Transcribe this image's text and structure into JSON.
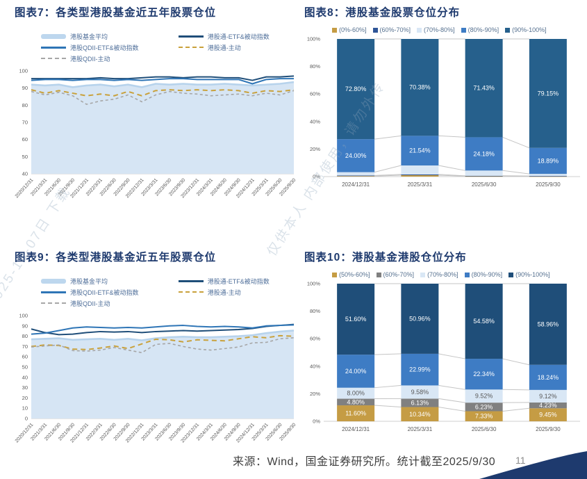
{
  "page": {
    "source_note": "来源：Wind，国金证券研究所。统计截至2025/9/30",
    "page_number": "11",
    "watermark_line1": "2025-10-07日 下载",
    "watermark_line2": "仅供本人 内部使用，请勿外传",
    "accent_navy": "#1E3A6E"
  },
  "chart_data": [
    {
      "id": "fig7",
      "type": "line",
      "title": "图表7：各类型港股基金近五年股票仓位",
      "x": [
        "2020/12/31",
        "2021/3/31",
        "2021/6/30",
        "2021/9/30",
        "2021/12/31",
        "2022/3/31",
        "2022/6/30",
        "2022/9/30",
        "2022/12/31",
        "2023/3/31",
        "2023/6/30",
        "2023/9/30",
        "2023/12/31",
        "2024/3/31",
        "2024/6/30",
        "2024/9/30",
        "2024/12/31",
        "2025/3/31",
        "2025/6/30",
        "2025/9/30"
      ],
      "ylim": [
        40,
        100
      ],
      "yticks": [
        40,
        50,
        60,
        70,
        80,
        90,
        100
      ],
      "grid": false,
      "legend_position": "top-two-column",
      "legend": [
        {
          "label": "港股基金平均",
          "swatch": "band",
          "color": "#BDD7EE"
        },
        {
          "label": "港股QDII-ETF&被动指数",
          "swatch": "line",
          "color": "#2E75B6"
        },
        {
          "label": "港股QDII-主动",
          "swatch": "dash",
          "color": "#A6A6A6"
        },
        {
          "label": "港股通-ETF&被动指数",
          "swatch": "line",
          "color": "#1F4E79"
        },
        {
          "label": "港股通-主动",
          "swatch": "dash",
          "color": "#C9A13B"
        }
      ],
      "series": [
        {
          "name": "港股基金平均",
          "kind": "area",
          "color": "#D6E5F4",
          "edge_color": "#B7D3EC",
          "values": [
            92,
            91.5,
            92,
            90.5,
            91.5,
            92,
            91,
            92,
            90.5,
            92.5,
            92,
            92.5,
            92,
            92,
            92.5,
            92,
            91.5,
            92,
            92.5,
            93.5
          ]
        },
        {
          "name": "港股通-ETF&被动指数",
          "kind": "line",
          "style": "solid",
          "color": "#1F4E79",
          "values": [
            95.5,
            95.5,
            95.5,
            95.5,
            95.5,
            96,
            95.5,
            95.5,
            96,
            96.5,
            96.5,
            96,
            96.5,
            96.5,
            96,
            96,
            94.5,
            96.5,
            96.5,
            97
          ]
        },
        {
          "name": "港股QDII-ETF&被动指数",
          "kind": "line",
          "style": "solid",
          "color": "#2E75B6",
          "values": [
            94.5,
            95,
            95,
            94.5,
            95,
            95,
            94.5,
            95,
            94.5,
            95,
            95.5,
            95.5,
            95,
            95,
            95,
            95,
            92.5,
            95,
            95.5,
            95.5
          ]
        },
        {
          "name": "港股通-主动",
          "kind": "line",
          "style": "dashed",
          "color": "#C9A13B",
          "values": [
            89,
            87,
            88.5,
            87,
            85.5,
            86.5,
            85.5,
            88,
            85.5,
            88.5,
            89,
            88.5,
            89,
            88.5,
            89,
            88.5,
            87,
            88.5,
            88,
            89
          ]
        },
        {
          "name": "港股QDII-主动",
          "kind": "line",
          "style": "dashed",
          "color": "#A6A6A6",
          "values": [
            88,
            86,
            87.5,
            85.5,
            80.5,
            82.5,
            83.5,
            86,
            82,
            86,
            88,
            87,
            86.5,
            85.5,
            86,
            86.5,
            85.5,
            87,
            86,
            88.5
          ]
        }
      ]
    },
    {
      "id": "fig8",
      "type": "bar",
      "subtype": "stacked-100",
      "title": "图表8：港股基金股票仓位分布",
      "categories": [
        "2024/12/31",
        "2025/3/31",
        "2025/6/30",
        "2025/9/30"
      ],
      "ylim": [
        0,
        100
      ],
      "yticks": [
        "0%",
        "20%",
        "40%",
        "60%",
        "80%",
        "100%"
      ],
      "grid": false,
      "legend_position": "top",
      "series": [
        {
          "name": "(0%-60%]",
          "color": "#C59C44",
          "label_fill": "#FFFFFF",
          "values": [
            0.4,
            1.0,
            0.3,
            0.2
          ]
        },
        {
          "name": "(60%-70%]",
          "color": "#2F5597",
          "label_fill": "#FFFFFF",
          "values": [
            0.4,
            0.58,
            0.3,
            0.25
          ]
        },
        {
          "name": "(70%-80%]",
          "color": "#D9E7F5",
          "label_fill": "#595959",
          "values": [
            2.4,
            6.5,
            3.79,
            1.51
          ]
        },
        {
          "name": "(80%-90%]",
          "color": "#3E7CC4",
          "label_fill": "#FFFFFF",
          "values": [
            24.0,
            21.54,
            24.18,
            18.89
          ],
          "labels": [
            "24.00%",
            "21.54%",
            "24.18%",
            "18.89%"
          ]
        },
        {
          "name": "(90%-100%]",
          "color": "#26608C",
          "label_fill": "#FFFFFF",
          "values": [
            72.8,
            70.38,
            71.43,
            79.15
          ],
          "labels": [
            "72.80%",
            "70.38%",
            "71.43%",
            "79.15%"
          ]
        }
      ]
    },
    {
      "id": "fig9",
      "type": "line",
      "title": "图表9：各类型港股基金近五年股票仓位",
      "x": [
        "2020/12/31",
        "2021/3/31",
        "2021/6/30",
        "2021/9/30",
        "2021/12/31",
        "2022/3/31",
        "2022/6/30",
        "2022/9/30",
        "2022/12/31",
        "2023/3/31",
        "2023/6/30",
        "2023/9/30",
        "2023/12/31",
        "2024/3/31",
        "2024/6/30",
        "2024/9/30",
        "2024/12/31",
        "2025/3/31",
        "2025/6/30",
        "2025/9/30"
      ],
      "ylim": [
        0,
        100
      ],
      "yticks": [
        0,
        10,
        20,
        30,
        40,
        50,
        60,
        70,
        80,
        90,
        100
      ],
      "grid": false,
      "legend_position": "top-two-column",
      "legend": [
        {
          "label": "港股基金平均",
          "swatch": "band",
          "color": "#BDD7EE"
        },
        {
          "label": "港股QDII-ETF&被动指数",
          "swatch": "line",
          "color": "#2E75B6"
        },
        {
          "label": "港股QDII-主动",
          "swatch": "dash",
          "color": "#A6A6A6"
        },
        {
          "label": "港股通-ETF&被动指数",
          "swatch": "line",
          "color": "#1F4E79"
        },
        {
          "label": "港股通-主动",
          "swatch": "dash",
          "color": "#C9A13B"
        }
      ],
      "series": [
        {
          "name": "港股基金平均",
          "kind": "area",
          "color": "#D6E5F4",
          "edge_color": "#B7D3EC",
          "values": [
            77,
            77.5,
            78,
            76.5,
            77,
            77.5,
            76.5,
            77.5,
            76,
            78,
            79,
            79.5,
            79,
            79,
            79.5,
            80,
            81,
            83,
            84.5,
            85.5
          ]
        },
        {
          "name": "港股通-ETF&被动指数",
          "kind": "line",
          "style": "solid",
          "color": "#1F4E79",
          "values": [
            87,
            83.5,
            81.5,
            82,
            83.5,
            84.5,
            84,
            84.5,
            83.5,
            84.5,
            85,
            85.5,
            85,
            85.5,
            86,
            86.5,
            87.5,
            89.5,
            90.5,
            91.5
          ]
        },
        {
          "name": "港股QDII-ETF&被动指数",
          "kind": "line",
          "style": "solid",
          "color": "#2E75B6",
          "values": [
            82,
            83,
            85.5,
            88,
            89,
            88.5,
            88,
            88.5,
            88,
            89,
            90,
            90.5,
            89.5,
            89,
            89.5,
            89,
            88,
            90,
            90.5,
            91
          ]
        },
        {
          "name": "港股通-主动",
          "kind": "line",
          "style": "dashed",
          "color": "#C9A13B",
          "values": [
            70,
            71.5,
            71,
            67.5,
            67,
            68.5,
            70.5,
            68,
            72.5,
            77,
            76.5,
            74.5,
            76.5,
            76,
            75.5,
            77.5,
            79.5,
            78.5,
            80.5,
            80
          ]
        },
        {
          "name": "港股QDII-主动",
          "kind": "line",
          "style": "dashed",
          "color": "#A6A6A6",
          "values": [
            69.5,
            70.5,
            71.5,
            66,
            65.5,
            66.5,
            69,
            66.5,
            64,
            72,
            73,
            70,
            67.5,
            66.5,
            68,
            69.5,
            73.5,
            74,
            77.5,
            78.5
          ]
        }
      ]
    },
    {
      "id": "fig10",
      "type": "bar",
      "subtype": "stacked-100",
      "title": "图表10：港股基金港股仓位分布",
      "categories": [
        "2024/12/31",
        "2025/3/31",
        "2025/6/30",
        "2025/9/30"
      ],
      "ylim": [
        0,
        100
      ],
      "yticks": [
        "0%",
        "20%",
        "40%",
        "60%",
        "80%",
        "100%"
      ],
      "grid": false,
      "legend_position": "top",
      "series": [
        {
          "name": "(50%-60%]",
          "color": "#C59C44",
          "label_fill": "#FFFFFF",
          "values": [
            11.6,
            10.34,
            7.33,
            9.45
          ],
          "labels": [
            "11.60%",
            "10.34%",
            "7.33%",
            "9.45%"
          ]
        },
        {
          "name": "(60%-70%]",
          "color": "#808080",
          "label_fill": "#FFFFFF",
          "values": [
            4.8,
            6.13,
            6.23,
            4.23
          ],
          "labels": [
            "4.80%",
            "6.13%",
            "6.23%",
            "4.23%"
          ]
        },
        {
          "name": "(70%-80%]",
          "color": "#D9E7F5",
          "label_fill": "#595959",
          "values": [
            8.0,
            9.58,
            9.52,
            9.12
          ],
          "labels": [
            "8.00%",
            "9.58%",
            "9.52%",
            "9.12%"
          ]
        },
        {
          "name": "(80%-90%]",
          "color": "#3E7CC4",
          "label_fill": "#FFFFFF",
          "values": [
            24.0,
            22.99,
            22.34,
            18.24
          ],
          "labels": [
            "24.00%",
            "22.99%",
            "22.34%",
            "18.24%"
          ]
        },
        {
          "name": "(90%-100%]",
          "color": "#1F4E79",
          "label_fill": "#FFFFFF",
          "values": [
            51.6,
            50.96,
            54.58,
            58.96
          ],
          "labels": [
            "51.60%",
            "50.96%",
            "54.58%",
            "58.96%"
          ]
        }
      ]
    }
  ]
}
